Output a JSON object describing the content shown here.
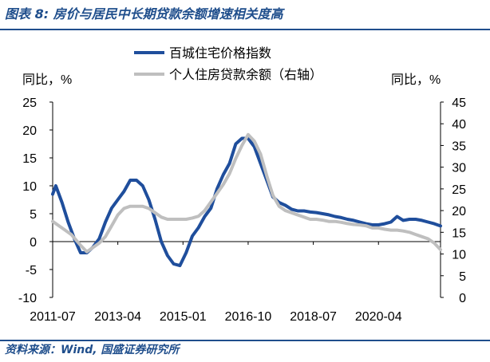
{
  "title": "图表 8: 房价与居民中长期贷款余额增速相关度高",
  "source": "资料来源：Wind, 国盛证券研究所",
  "chart_data": {
    "type": "line",
    "x_ticks": [
      "2011-07",
      "2013-04",
      "2015-01",
      "2016-10",
      "2018-07",
      "2020-04"
    ],
    "y_left": {
      "label": "同比，%",
      "ticks": [
        "-10",
        "-5",
        "0",
        "5",
        "10",
        "15",
        "20",
        "25"
      ],
      "range": [
        -10,
        25
      ]
    },
    "y_right": {
      "label": "同比，%",
      "ticks": [
        "0",
        "5",
        "10",
        "15",
        "20",
        "25",
        "30",
        "35",
        "40",
        "45"
      ],
      "range": [
        0,
        45
      ]
    },
    "legend_position": "top-center",
    "grid": false,
    "series": [
      {
        "name": "百城住宅价格指数",
        "axis": "left",
        "color": "#1f4e9c",
        "x": [
          "2011-07",
          "2011-08",
          "2011-10",
          "2011-12",
          "2012-02",
          "2012-04",
          "2012-06",
          "2012-08",
          "2012-10",
          "2012-12",
          "2013-02",
          "2013-04",
          "2013-06",
          "2013-08",
          "2013-10",
          "2013-12",
          "2014-02",
          "2014-04",
          "2014-06",
          "2014-08",
          "2014-10",
          "2014-12",
          "2015-02",
          "2015-04",
          "2015-06",
          "2015-08",
          "2015-10",
          "2015-12",
          "2016-02",
          "2016-04",
          "2016-06",
          "2016-08",
          "2016-10",
          "2016-12",
          "2017-02",
          "2017-04",
          "2017-06",
          "2017-08",
          "2017-10",
          "2017-12",
          "2018-02",
          "2018-04",
          "2018-06",
          "2018-08",
          "2018-10",
          "2018-12",
          "2019-02",
          "2019-04",
          "2019-06",
          "2019-08",
          "2019-10",
          "2019-12",
          "2020-02",
          "2020-04",
          "2020-06",
          "2020-08",
          "2020-10",
          "2020-12",
          "2021-02",
          "2021-04",
          "2021-06",
          "2021-08",
          "2021-10",
          "2021-12"
        ],
        "values": [
          8.5,
          10.0,
          7.0,
          3.5,
          0.5,
          -2.0,
          -2.0,
          -1.0,
          0.5,
          3.5,
          6.0,
          7.5,
          9.0,
          11.0,
          11.0,
          10.0,
          7.5,
          4.0,
          0.0,
          -2.5,
          -4.0,
          -4.3,
          -2.0,
          1.0,
          2.5,
          4.5,
          6.0,
          9.5,
          12.0,
          14.0,
          17.5,
          18.5,
          18.5,
          17.0,
          14.0,
          11.0,
          8.0,
          7.0,
          6.5,
          5.8,
          5.5,
          5.5,
          5.3,
          5.2,
          5.0,
          4.8,
          4.5,
          4.3,
          4.0,
          3.8,
          3.5,
          3.2,
          3.0,
          3.0,
          3.2,
          3.5,
          4.5,
          3.8,
          4.0,
          4.0,
          3.8,
          3.5,
          3.2,
          2.8
        ]
      },
      {
        "name": "个人住房贷款余额（右轴）",
        "axis": "right",
        "color": "#bfbfbf",
        "x": [
          "2011-07",
          "2011-10",
          "2012-01",
          "2012-04",
          "2012-06",
          "2012-08",
          "2012-10",
          "2012-12",
          "2013-02",
          "2013-04",
          "2013-06",
          "2013-08",
          "2013-10",
          "2013-12",
          "2014-02",
          "2014-04",
          "2014-06",
          "2014-08",
          "2014-10",
          "2014-12",
          "2015-02",
          "2015-04",
          "2015-06",
          "2015-08",
          "2015-10",
          "2015-12",
          "2016-02",
          "2016-04",
          "2016-06",
          "2016-08",
          "2016-10",
          "2016-12",
          "2017-02",
          "2017-04",
          "2017-06",
          "2017-08",
          "2017-10",
          "2017-12",
          "2018-02",
          "2018-04",
          "2018-06",
          "2018-08",
          "2018-10",
          "2018-12",
          "2019-02",
          "2019-04",
          "2019-06",
          "2019-08",
          "2019-10",
          "2019-12",
          "2020-02",
          "2020-04",
          "2020-06",
          "2020-08",
          "2020-10",
          "2020-12",
          "2021-02",
          "2021-04",
          "2021-06",
          "2021-08",
          "2021-10",
          "2021-12"
        ],
        "values": [
          17.5,
          16.0,
          14.5,
          12.0,
          10.5,
          11.5,
          12.5,
          14.0,
          16.5,
          19.0,
          20.5,
          21.0,
          21.0,
          21.0,
          20.5,
          19.5,
          18.5,
          18.0,
          18.0,
          18.0,
          18.0,
          18.3,
          18.7,
          20.0,
          22.0,
          24.0,
          26.0,
          28.5,
          32.0,
          35.0,
          37.5,
          36.0,
          33.0,
          28.0,
          23.5,
          21.0,
          20.0,
          19.5,
          19.0,
          18.5,
          18.0,
          18.0,
          17.8,
          17.5,
          17.5,
          17.3,
          17.0,
          16.8,
          16.7,
          16.5,
          16.0,
          16.0,
          15.7,
          15.5,
          15.5,
          15.3,
          15.0,
          14.5,
          14.0,
          13.5,
          12.5,
          11.0
        ]
      }
    ]
  }
}
